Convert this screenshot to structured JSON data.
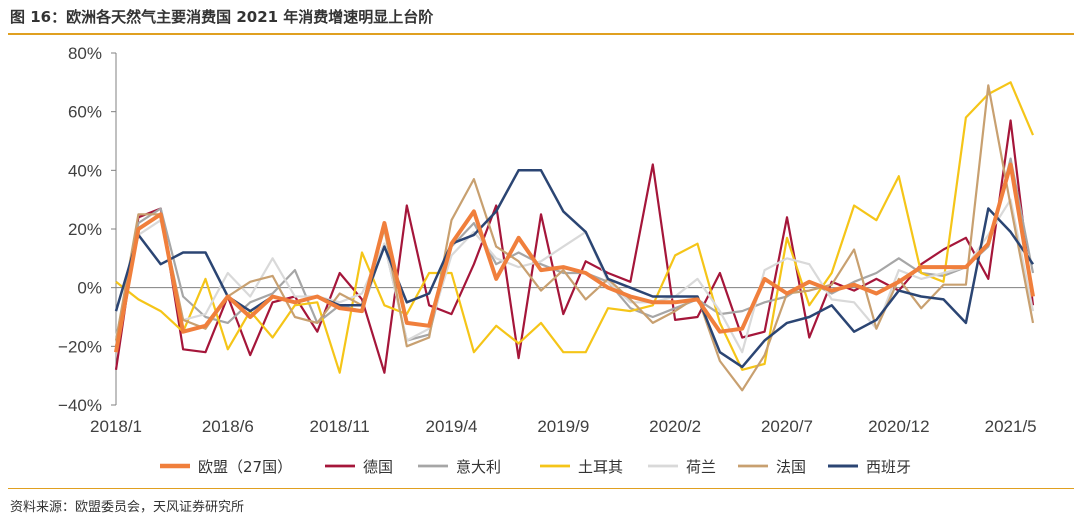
{
  "figure": {
    "title": "图 16：欧洲各天然气主要消费国 2021 年消费增速明显上台阶",
    "source": "资料来源：欧盟委员会，天风证券研究所"
  },
  "chart_data": {
    "type": "line",
    "ylim": [
      -40,
      80
    ],
    "yticks": [
      -40,
      -20,
      0,
      20,
      40,
      60,
      80
    ],
    "ytick_labels": [
      "−40%",
      "−20%",
      "0%",
      "20%",
      "40%",
      "60%",
      "80%"
    ],
    "xtick_labels": [
      "2018/1",
      "2018/6",
      "2018/11",
      "2019/4",
      "2019/9",
      "2020/2",
      "2020/7",
      "2020/12",
      "2021/5"
    ],
    "grid": false,
    "legend_position": "bottom",
    "x": [
      "2018/1",
      "2018/2",
      "2018/3",
      "2018/4",
      "2018/5",
      "2018/6",
      "2018/7",
      "2018/8",
      "2018/9",
      "2018/10",
      "2018/11",
      "2018/12",
      "2019/1",
      "2019/2",
      "2019/3",
      "2019/4",
      "2019/5",
      "2019/6",
      "2019/7",
      "2019/8",
      "2019/9",
      "2019/10",
      "2019/11",
      "2019/12",
      "2020/1",
      "2020/2",
      "2020/3",
      "2020/4",
      "2020/5",
      "2020/6",
      "2020/7",
      "2020/8",
      "2020/9",
      "2020/10",
      "2020/11",
      "2020/12",
      "2021/1",
      "2021/2",
      "2021/3",
      "2021/4",
      "2021/5",
      "2021/6"
    ],
    "series": [
      {
        "name": "欧盟（27国）",
        "color": "#f07f3c",
        "width": 4,
        "values": [
          -22,
          20,
          25,
          -15,
          -13,
          -3,
          -10,
          -3,
          -5,
          -3,
          -7,
          -8,
          22,
          -12,
          -13,
          15,
          26,
          3,
          17,
          6,
          7,
          5,
          0,
          -3,
          -5,
          -5,
          -4,
          -15,
          -14,
          3,
          -2,
          2,
          -1,
          1,
          -2,
          2,
          7,
          7,
          7,
          15,
          42,
          -3
        ]
      },
      {
        "name": "德国",
        "color": "#a5163a",
        "width": 2.2,
        "values": [
          -28,
          24,
          27,
          -21,
          -22,
          -3,
          -23,
          -5,
          -3,
          -15,
          5,
          -4,
          -29,
          28,
          -6,
          -9,
          8,
          28,
          -24,
          25,
          -9,
          9,
          5,
          2,
          42,
          -11,
          -10,
          5,
          -17,
          -15,
          24,
          -17,
          2,
          -1,
          3,
          -1,
          8,
          13,
          17,
          3,
          57,
          -6
        ]
      },
      {
        "name": "意大利",
        "color": "#a6a6a6",
        "width": 2.2,
        "values": [
          -20,
          22,
          27,
          -3,
          -10,
          -12,
          -5,
          -2,
          6,
          -12,
          -6,
          -8,
          15,
          -18,
          -16,
          14,
          22,
          8,
          12,
          8,
          5,
          5,
          2,
          -7,
          -10,
          -7,
          -4,
          -9,
          -8,
          -5,
          -3,
          2,
          -2,
          2,
          5,
          10,
          5,
          4,
          7,
          14,
          44,
          5
        ]
      },
      {
        "name": "土耳其",
        "color": "#f5c518",
        "width": 2.2,
        "values": [
          2,
          -4,
          -8,
          -15,
          3,
          -21,
          -8,
          -17,
          -6,
          -5,
          -29,
          12,
          -6,
          -9,
          5,
          5,
          -22,
          -13,
          -19,
          -12,
          -22,
          -22,
          -7,
          -8,
          -6,
          11,
          15,
          -12,
          -28,
          -26,
          17,
          -6,
          5,
          28,
          23,
          38,
          5,
          2,
          58,
          66,
          70,
          52
        ]
      },
      {
        "name": "荷兰",
        "color": "#d9d9d9",
        "width": 2.2,
        "values": [
          -17,
          18,
          23,
          -11,
          -9,
          5,
          -3,
          10,
          -3,
          -3,
          -5,
          -2,
          15,
          -18,
          -14,
          11,
          19,
          10,
          7,
          9,
          14,
          19,
          2,
          -5,
          -5,
          -3,
          3,
          -8,
          -22,
          6,
          10,
          8,
          -4,
          -5,
          -14,
          6,
          3,
          5,
          7,
          18,
          30,
          -8
        ]
      },
      {
        "name": "法国",
        "color": "#c8a070",
        "width": 2.2,
        "values": [
          -18,
          25,
          25,
          -11,
          -14,
          -3,
          2,
          4,
          -10,
          -12,
          -2,
          -6,
          20,
          -20,
          -17,
          23,
          37,
          14,
          9,
          -1,
          6,
          -4,
          3,
          -4,
          -12,
          -8,
          -3,
          -25,
          -35,
          -23,
          -2,
          -1,
          1,
          13,
          -14,
          3,
          -7,
          1,
          1,
          69,
          28,
          -12
        ]
      },
      {
        "name": "西班牙",
        "color": "#2b4573",
        "width": 2.5,
        "values": [
          -8,
          18,
          8,
          12,
          12,
          -3,
          -8,
          -3,
          -5,
          -3,
          -6,
          -6,
          14,
          -5,
          -2,
          15,
          18,
          26,
          40,
          40,
          26,
          19,
          3,
          0,
          -3,
          -3,
          -3,
          -22,
          -27,
          -18,
          -12,
          -10,
          -6,
          -15,
          -11,
          -1,
          -3,
          -4,
          -12,
          27,
          19,
          8
        ]
      }
    ]
  }
}
